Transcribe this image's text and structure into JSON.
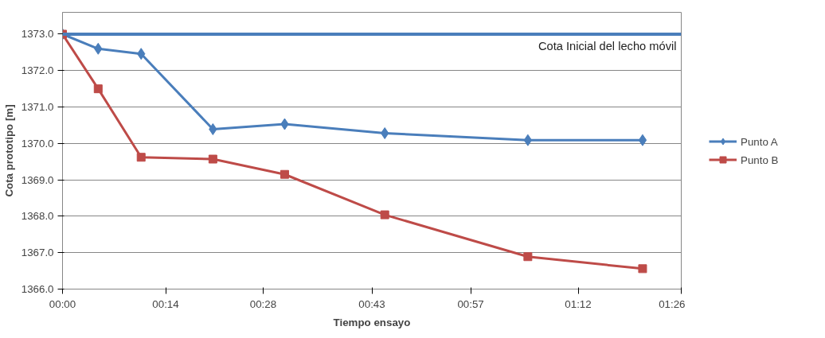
{
  "chart_data": {
    "type": "line",
    "xlabel": "Tiempo ensayo",
    "ylabel": "Cota prototipo [m]",
    "x": [
      0,
      0.083,
      0.183,
      0.35,
      0.517,
      0.75,
      1.083,
      1.35
    ],
    "series": [
      {
        "name": "Punto A",
        "color": "#4a7ebb",
        "marker": "diamond",
        "values": [
          1373.0,
          1372.6,
          1372.46,
          1370.39,
          1370.53,
          1370.28,
          1370.09,
          1370.09
        ]
      },
      {
        "name": "Punto B",
        "color": "#be4b48",
        "marker": "square",
        "values": [
          1373.0,
          1371.5,
          1369.62,
          1369.57,
          1369.15,
          1368.04,
          1366.89,
          1366.56
        ]
      }
    ],
    "xlim": [
      0,
      1.44
    ],
    "xticks": [
      {
        "value": 0,
        "label": "00:00"
      },
      {
        "value": 0.24,
        "label": "00:14"
      },
      {
        "value": 0.467,
        "label": "00:28"
      },
      {
        "value": 0.72,
        "label": "00:43"
      },
      {
        "value": 0.95,
        "label": "00:57"
      },
      {
        "value": 1.2,
        "label": "01:12"
      },
      {
        "value": 1.44,
        "label": "01:26"
      }
    ],
    "ylim": [
      1366,
      1373.6
    ],
    "yticks": [
      {
        "value": 1366,
        "label": "1366.0"
      },
      {
        "value": 1367,
        "label": "1367.0"
      },
      {
        "value": 1368,
        "label": "1368.0"
      },
      {
        "value": 1369,
        "label": "1369.0"
      },
      {
        "value": 1370,
        "label": "1370.0"
      },
      {
        "value": 1371,
        "label": "1371.0"
      },
      {
        "value": 1372,
        "label": "1372.0"
      },
      {
        "value": 1373,
        "label": "1373.0"
      }
    ],
    "ref_lines": [
      {
        "axis": "y",
        "value": 1373,
        "label": "Cota Inicial del lecho móvil",
        "color": "#4a7ebb"
      }
    ],
    "grid": "y",
    "legend": "right",
    "line_style": "solid"
  }
}
